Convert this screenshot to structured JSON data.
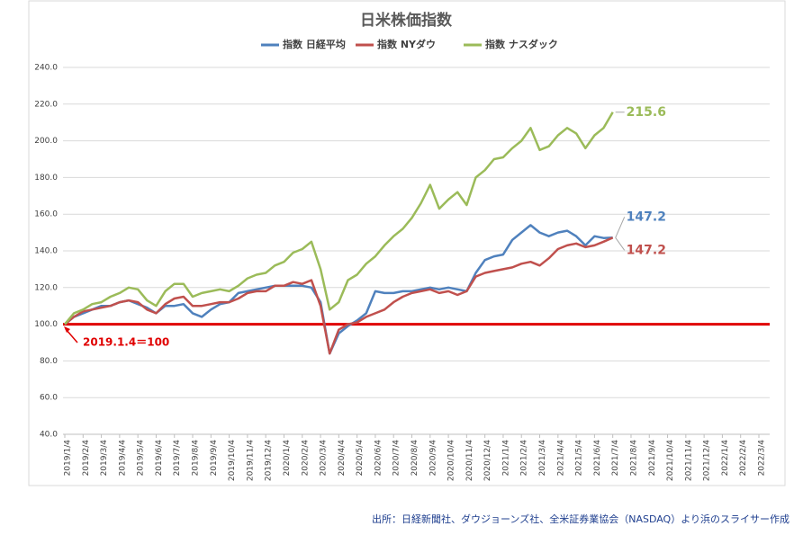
{
  "chart_data": {
    "type": "line",
    "title": "日米株価指数",
    "categories": [
      "2019/1/4",
      null,
      "2019/2/4",
      null,
      "2019/3/4",
      null,
      "2019/4/4",
      null,
      "2019/5/4",
      null,
      "2019/6/4",
      null,
      "2019/7/4",
      null,
      "2019/8/4",
      null,
      "2019/9/4",
      null,
      "2019/10/4",
      null,
      "2019/11/4",
      null,
      "2019/12/4",
      null,
      "2020/1/4",
      null,
      "2020/2/4",
      null,
      "2020/3/4",
      null,
      "2020/4/4",
      null,
      "2020/5/4",
      null,
      "2020/6/4",
      null,
      "2020/7/4",
      null,
      "2020/8/4",
      null,
      "2020/9/4",
      null,
      "2020/10/4",
      null,
      "2020/11/4",
      null,
      "2020/12/4",
      null,
      "2021/1/4",
      null,
      "2021/2/4",
      null,
      "2021/3/4",
      null,
      "2021/4/4",
      null,
      "2021/5/4",
      null,
      "2021/6/4",
      null,
      "2021/7/4",
      null,
      "2021/8/4",
      null,
      "2021/9/4",
      null,
      "2021/10/4",
      null,
      "2021/11/4",
      null,
      "2021/12/4",
      null,
      "2022/1/4",
      null,
      "2022/2/4",
      null,
      "2022/3/4"
    ],
    "series": [
      {
        "name": "指数 日経平均",
        "color": "#4f81bd",
        "values": [
          100,
          104,
          106,
          108,
          110,
          110,
          112,
          113,
          111,
          109,
          106,
          110,
          110,
          111,
          106,
          104,
          108,
          111,
          112,
          117,
          118,
          119,
          120,
          121,
          121,
          121,
          121,
          120,
          112,
          84,
          95,
          99,
          102,
          106,
          118,
          117,
          117,
          118,
          118,
          119,
          120,
          119,
          120,
          119,
          118,
          128,
          135,
          137,
          138,
          146,
          150,
          154,
          150,
          148,
          150,
          151,
          148,
          143,
          148,
          147,
          147.2,
          null,
          null,
          null,
          null,
          null,
          null,
          null,
          null,
          null,
          null,
          null,
          null,
          null,
          null,
          null,
          null
        ]
      },
      {
        "name": "指数 NYダウ",
        "color": "#c0504d",
        "values": [
          100,
          104,
          107,
          108,
          109,
          110,
          112,
          113,
          112,
          108,
          106,
          111,
          114,
          115,
          110,
          110,
          111,
          112,
          112,
          114,
          117,
          118,
          118,
          121,
          121,
          123,
          122,
          124,
          110,
          84,
          97,
          100,
          101,
          104,
          106,
          108,
          112,
          115,
          117,
          118,
          119,
          117,
          118,
          116,
          118,
          126,
          128,
          129,
          130,
          131,
          133,
          134,
          132,
          136,
          141,
          143,
          144,
          142,
          143,
          145,
          147.2,
          null,
          null,
          null,
          null,
          null,
          null,
          null,
          null,
          null,
          null,
          null,
          null,
          null,
          null,
          null,
          null
        ]
      },
      {
        "name": "指数 ナスダック",
        "color": "#9bbb59",
        "values": [
          100,
          106,
          108,
          111,
          112,
          115,
          117,
          120,
          119,
          113,
          110,
          118,
          122,
          122,
          115,
          117,
          118,
          119,
          118,
          121,
          125,
          127,
          128,
          132,
          134,
          139,
          141,
          145,
          130,
          108,
          112,
          124,
          127,
          133,
          137,
          143,
          148,
          152,
          158,
          166,
          176,
          163,
          168,
          172,
          165,
          180,
          184,
          190,
          191,
          196,
          200,
          207,
          195,
          197,
          203,
          207,
          204,
          196,
          203,
          207,
          215.6,
          null,
          null,
          null,
          null,
          null,
          null,
          null,
          null,
          null,
          null,
          null,
          null,
          null,
          null,
          null,
          null
        ]
      }
    ],
    "end_labels": [
      "147.2",
      "147.2",
      "215.6"
    ],
    "ylim": [
      40,
      240
    ],
    "yticks": [
      {
        "value": 40,
        "label": "40.0"
      },
      {
        "value": 60,
        "label": "60.0"
      },
      {
        "value": 80,
        "label": "80.0"
      },
      {
        "value": 100,
        "label": "100.0"
      },
      {
        "value": 120,
        "label": "120.0"
      },
      {
        "value": 140,
        "label": "140.0"
      },
      {
        "value": 160,
        "label": "160.0"
      },
      {
        "value": 180,
        "label": "180.0"
      },
      {
        "value": 200,
        "label": "200.0"
      },
      {
        "value": 220,
        "label": "220.0"
      },
      {
        "value": 240,
        "label": "240.0"
      }
    ],
    "grid": true,
    "legend": "top",
    "reference_line": {
      "value": 100,
      "color": "#e00000",
      "label": "2019.1.4＝100"
    },
    "source": "出所：日経新聞社、ダウジョーンズ社、全米証券業協会（NASDAQ）より浜のスライサー作成"
  }
}
